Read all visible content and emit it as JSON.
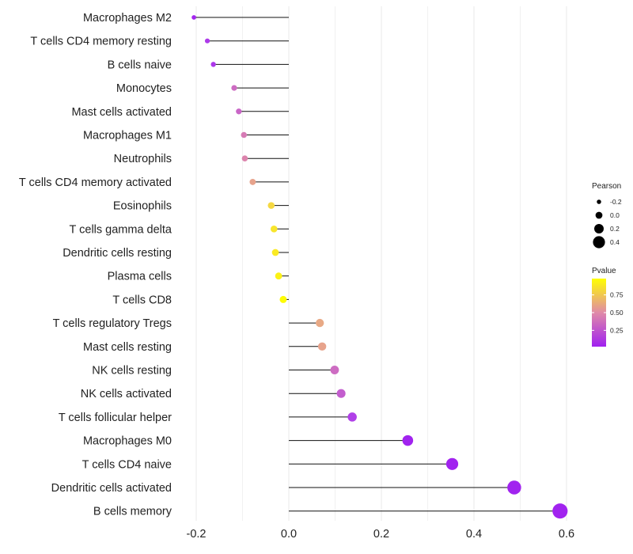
{
  "chart_data": {
    "type": "lollipop",
    "title": "",
    "xlabel": "",
    "ylabel": "",
    "xlim": [
      -0.205,
      0.6
    ],
    "xticks": [
      -0.2,
      0.0,
      0.2,
      0.4,
      0.6
    ],
    "xtick_labels": [
      "-0.2",
      "0.0",
      "0.2",
      "0.4",
      "0.6"
    ],
    "grid": "vertical",
    "categories": [
      "Macrophages M2",
      "T cells CD4 memory resting",
      "B cells naive",
      "Monocytes",
      "Mast cells activated",
      "Macrophages M1",
      "Neutrophils",
      "T cells CD4 memory activated",
      "Eosinophils",
      "T cells gamma delta",
      "Dendritic cells resting",
      "Plasma cells",
      "T cells CD8",
      "T cells regulatory  Tregs ",
      "Mast cells resting",
      "NK cells resting",
      "NK cells activated",
      "T cells follicular helper",
      "Macrophages M0",
      "T cells CD4 naive",
      "Dendritic cells activated",
      "B cells memory"
    ],
    "values": [
      -0.205,
      -0.176,
      -0.163,
      -0.118,
      -0.108,
      -0.097,
      -0.095,
      -0.078,
      -0.038,
      -0.032,
      -0.029,
      -0.022,
      -0.012,
      0.067,
      0.072,
      0.099,
      0.113,
      0.137,
      0.257,
      0.353,
      0.487,
      0.586
    ],
    "pvalues": [
      0.05,
      0.2,
      0.18,
      0.4,
      0.38,
      0.45,
      0.48,
      0.62,
      0.85,
      0.9,
      0.92,
      0.95,
      0.99,
      0.65,
      0.62,
      0.4,
      0.35,
      0.25,
      0.02,
      0.02,
      0.02,
      0.02
    ],
    "legend_position": "right",
    "legends": {
      "size": {
        "title": "Pearson",
        "labels": [
          "-0.2",
          "0.0",
          "0.2",
          "0.4"
        ],
        "values": [
          -0.2,
          0.0,
          0.2,
          0.4
        ]
      },
      "color": {
        "title": "Pvalue",
        "labels": [
          "0.75",
          "0.50",
          "0.25"
        ],
        "values": [
          0.75,
          0.5,
          0.25
        ],
        "low_color": "#a020f0",
        "high_color": "#ffff00"
      }
    }
  }
}
